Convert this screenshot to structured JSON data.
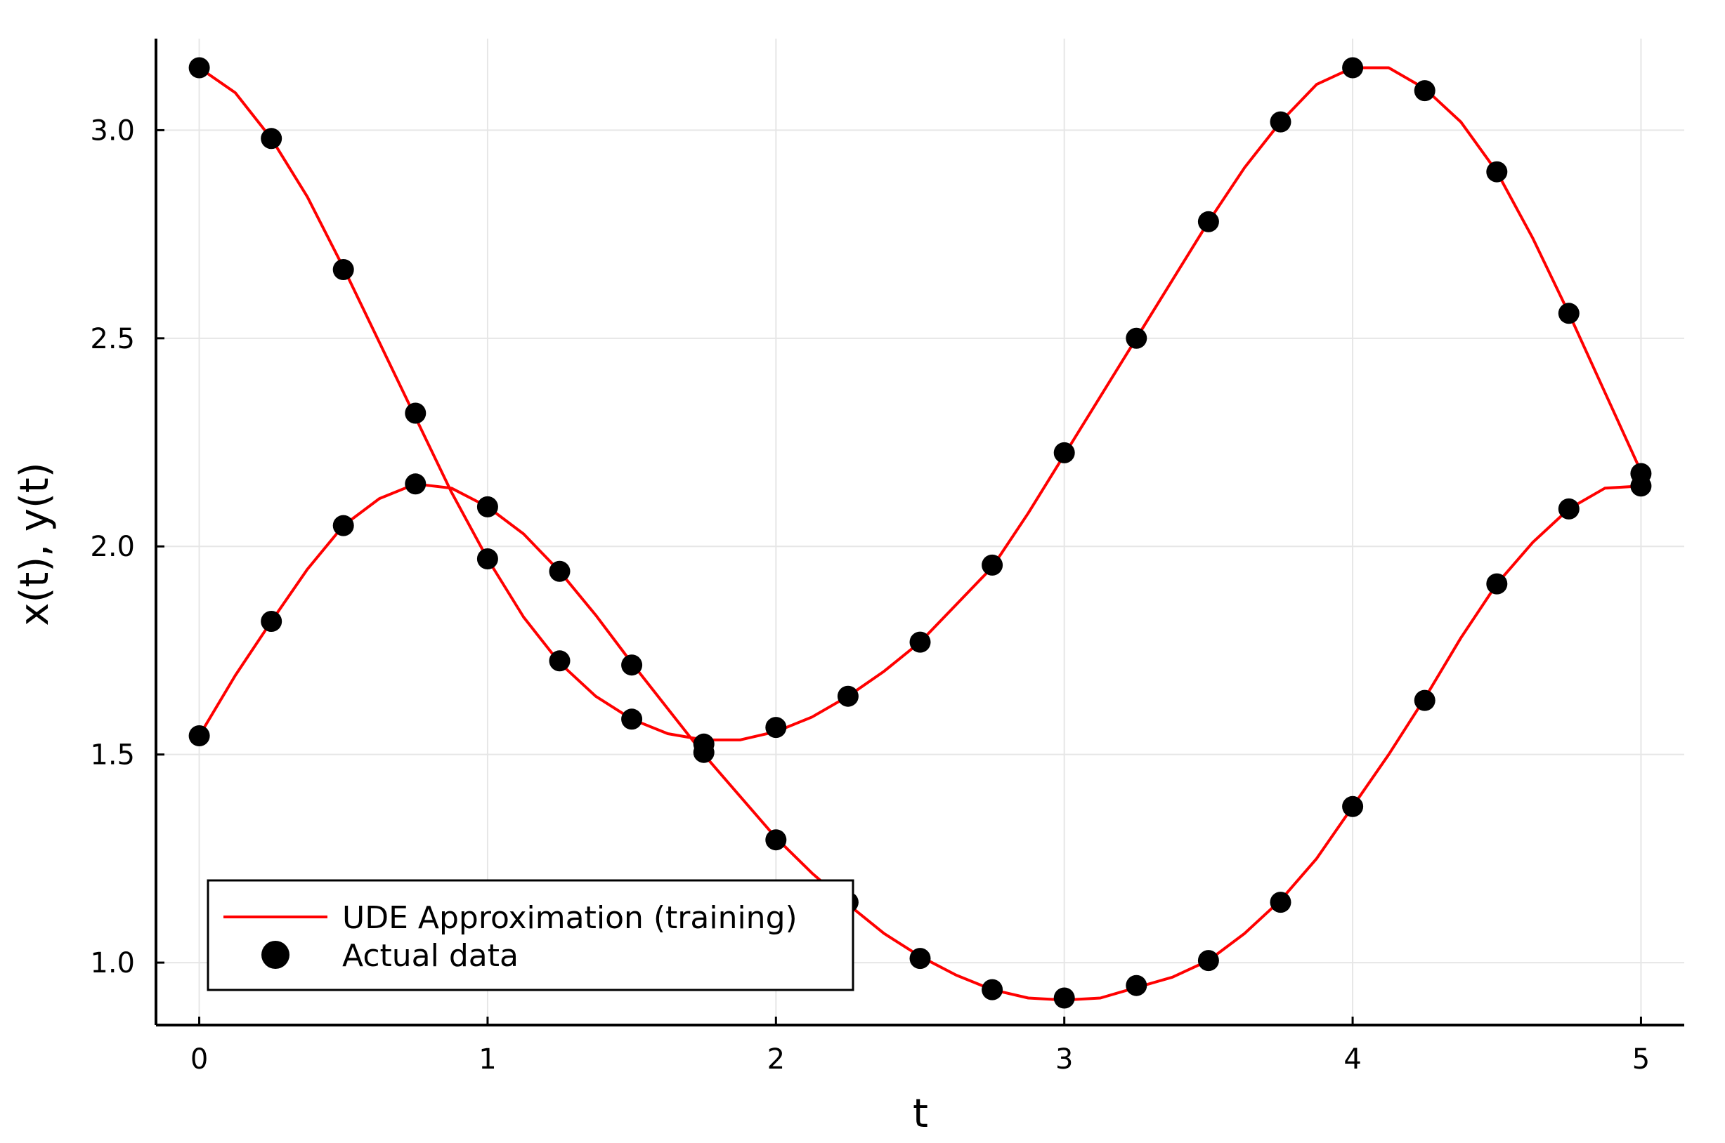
{
  "chart_data": {
    "type": "line",
    "xlabel": "t",
    "ylabel": "x(t), y(t)",
    "xlim": [
      -0.15,
      5.15
    ],
    "ylim": [
      0.85,
      3.22
    ],
    "xticks": [
      "0",
      "1",
      "2",
      "3",
      "4",
      "5"
    ],
    "yticks": [
      "1.0",
      "1.5",
      "2.0",
      "2.5",
      "3.0"
    ],
    "grid": true,
    "legend": {
      "position": "bottom-left",
      "entries": [
        "UDE Approximation (training)",
        "Actual data"
      ]
    },
    "series": [
      {
        "name": "UDE Approximation (training)",
        "kind": "line",
        "color": "#ff0000",
        "curves": [
          {
            "x": [
              0,
              0.125,
              0.25,
              0.375,
              0.5,
              0.625,
              0.75,
              0.875,
              1.0,
              1.125,
              1.25,
              1.375,
              1.5,
              1.625,
              1.75,
              1.875,
              2.0,
              2.125,
              2.25,
              2.375,
              2.5,
              2.625,
              2.75,
              2.875,
              3.0,
              3.125,
              3.25,
              3.375,
              3.5,
              3.625,
              3.75,
              3.875,
              4.0,
              4.125,
              4.25,
              4.375,
              4.5,
              4.625,
              4.75,
              4.875,
              5.0
            ],
            "y": [
              3.15,
              3.09,
              2.98,
              2.84,
              2.67,
              2.49,
              2.31,
              2.13,
              1.97,
              1.83,
              1.72,
              1.64,
              1.585,
              1.55,
              1.535,
              1.535,
              1.555,
              1.59,
              1.64,
              1.7,
              1.77,
              1.86,
              1.95,
              2.08,
              2.22,
              2.36,
              2.5,
              2.64,
              2.78,
              2.91,
              3.02,
              3.11,
              3.15,
              3.15,
              3.1,
              3.02,
              2.9,
              2.74,
              2.56,
              2.37,
              2.18
            ]
          },
          {
            "x": [
              0,
              0.125,
              0.25,
              0.375,
              0.5,
              0.625,
              0.75,
              0.875,
              1.0,
              1.125,
              1.25,
              1.375,
              1.5,
              1.625,
              1.75,
              1.875,
              2.0,
              2.125,
              2.25,
              2.375,
              2.5,
              2.625,
              2.75,
              2.875,
              3.0,
              3.125,
              3.25,
              3.375,
              3.5,
              3.625,
              3.75,
              3.875,
              4.0,
              4.125,
              4.25,
              4.375,
              4.5,
              4.625,
              4.75,
              4.875,
              5.0
            ],
            "y": [
              1.545,
              1.69,
              1.82,
              1.945,
              2.05,
              2.115,
              2.15,
              2.14,
              2.095,
              2.03,
              1.94,
              1.835,
              1.72,
              1.61,
              1.5,
              1.4,
              1.3,
              1.215,
              1.14,
              1.07,
              1.015,
              0.97,
              0.935,
              0.915,
              0.91,
              0.915,
              0.94,
              0.965,
              1.005,
              1.07,
              1.15,
              1.25,
              1.375,
              1.5,
              1.635,
              1.78,
              1.91,
              2.01,
              2.09,
              2.14,
              2.145
            ]
          }
        ]
      },
      {
        "name": "Actual data",
        "kind": "scatter",
        "color": "#000000",
        "points": {
          "x": [
            0,
            0.25,
            0.5,
            0.75,
            1.0,
            1.25,
            1.5,
            1.75,
            2.0,
            2.25,
            2.5,
            2.75,
            3.0,
            3.25,
            3.5,
            3.75,
            4.0,
            4.25,
            4.5,
            4.75,
            5.0,
            0,
            0.25,
            0.5,
            0.75,
            1.0,
            1.25,
            1.5,
            1.75,
            2.0,
            2.25,
            2.5,
            2.75,
            3.0,
            3.25,
            3.5,
            3.75,
            4.0,
            4.25,
            4.5,
            4.75,
            5.0
          ],
          "y": [
            3.15,
            2.98,
            2.665,
            2.32,
            1.97,
            1.725,
            1.585,
            1.525,
            1.565,
            1.64,
            1.77,
            1.955,
            2.225,
            2.5,
            2.78,
            3.02,
            3.15,
            3.095,
            2.9,
            2.56,
            2.175,
            1.545,
            1.82,
            2.05,
            2.15,
            2.095,
            1.94,
            1.715,
            1.505,
            1.295,
            1.145,
            1.01,
            0.935,
            0.915,
            0.945,
            1.005,
            1.145,
            1.375,
            1.63,
            1.91,
            2.09,
            2.145
          ]
        }
      }
    ]
  }
}
